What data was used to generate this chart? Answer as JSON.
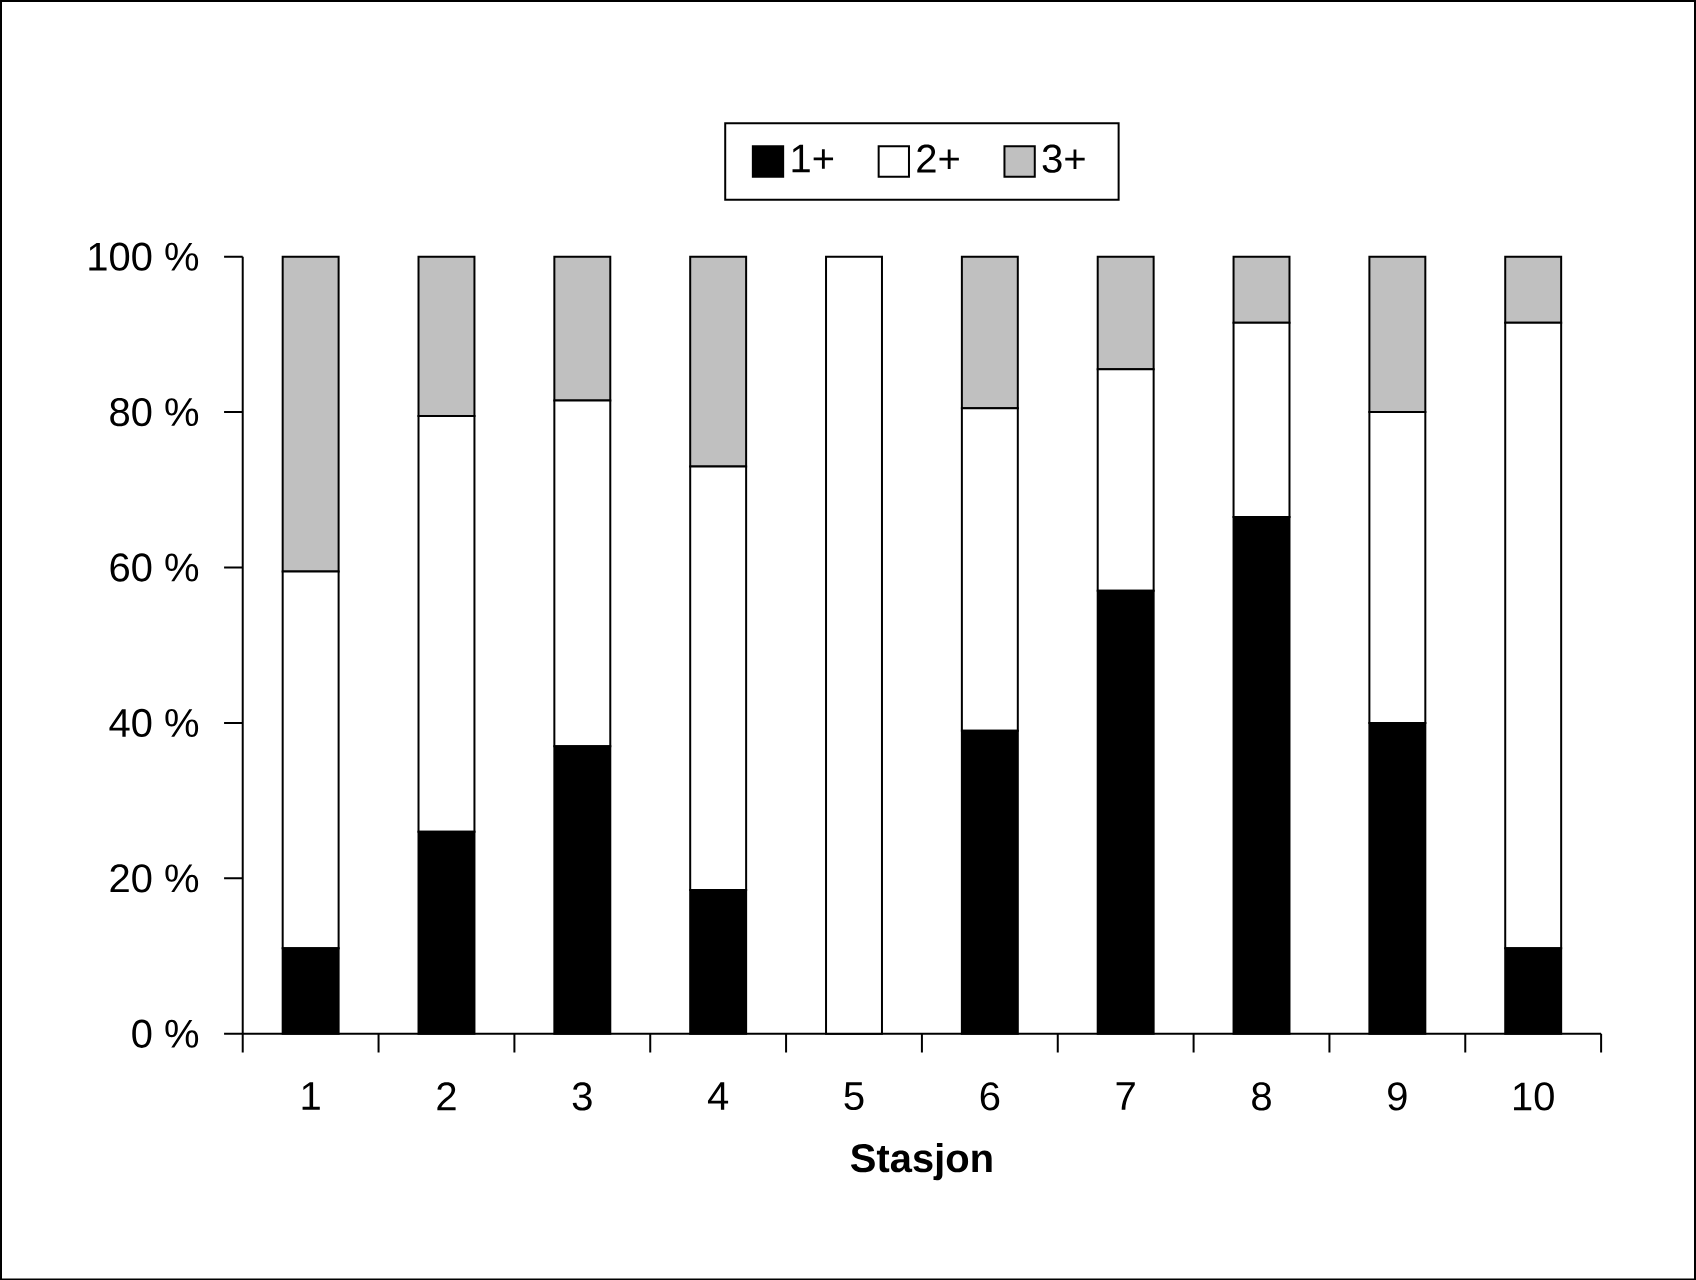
{
  "chart_data": {
    "type": "bar",
    "stacked": true,
    "xlabel": "Stasjon",
    "categories": [
      "1",
      "2",
      "3",
      "4",
      "5",
      "6",
      "7",
      "8",
      "9",
      "10"
    ],
    "series": [
      {
        "name": "1+",
        "color": "#000000",
        "values": [
          11,
          26,
          37,
          18.5,
          0,
          39,
          57,
          66.5,
          40,
          11
        ]
      },
      {
        "name": "2+",
        "color": "#ffffff",
        "values": [
          48.5,
          53.5,
          44.5,
          54.5,
          100,
          41.5,
          28.5,
          25,
          40,
          80.5
        ]
      },
      {
        "name": "3+",
        "color": "#c0c0c0",
        "values": [
          40.5,
          20.5,
          18.5,
          27,
          0,
          19.5,
          14.5,
          8.5,
          20,
          8.5
        ]
      }
    ],
    "ylim": [
      0,
      100
    ],
    "yticks": [
      {
        "value": 0,
        "label": "0 %"
      },
      {
        "value": 20,
        "label": "20 %"
      },
      {
        "value": 40,
        "label": "40 %"
      },
      {
        "value": 60,
        "label": "60 %"
      },
      {
        "value": 80,
        "label": "80 %"
      },
      {
        "value": 100,
        "label": "100 %"
      }
    ],
    "legend": "top",
    "grid": false
  }
}
